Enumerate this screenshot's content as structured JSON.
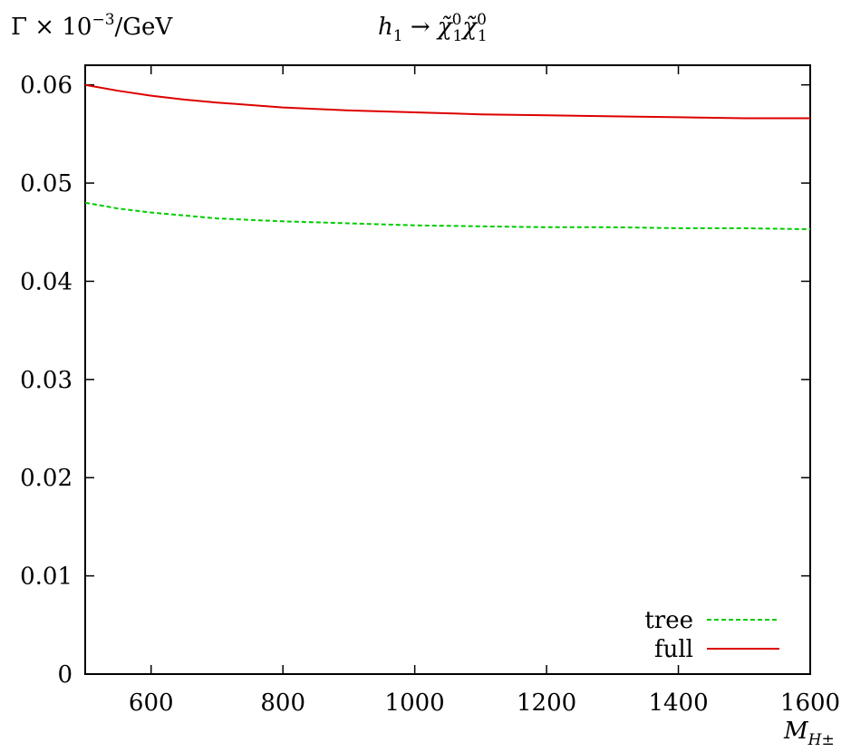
{
  "chart_data": {
    "type": "line",
    "title": "h₁ → χ̃₁⁰χ̃₁⁰",
    "ylabel": "Γ × 10⁻³/GeV",
    "xlabel": "M_{H±}",
    "xlim": [
      500,
      1600
    ],
    "ylim": [
      0,
      0.062
    ],
    "xticks": [
      600,
      800,
      1000,
      1200,
      1400,
      1600
    ],
    "xtick_labels": [
      "600",
      "800",
      "1000",
      "1200",
      "1400",
      "1600"
    ],
    "yticks": [
      0,
      0.01,
      0.02,
      0.03,
      0.04,
      0.05,
      0.06
    ],
    "ytick_labels": [
      "0",
      "0.01",
      "0.02",
      "0.03",
      "0.04",
      "0.05",
      "0.06"
    ],
    "grid": false,
    "legend_position": "bottom-right",
    "series": [
      {
        "name": "tree",
        "color": "#00cc00",
        "dash": "dashed",
        "x": [
          500,
          550,
          600,
          650,
          700,
          800,
          900,
          1000,
          1100,
          1200,
          1300,
          1400,
          1500,
          1600
        ],
        "y": [
          0.048,
          0.0474,
          0.047,
          0.0467,
          0.0464,
          0.0461,
          0.0459,
          0.0457,
          0.0456,
          0.0455,
          0.0455,
          0.0454,
          0.0454,
          0.0453
        ]
      },
      {
        "name": "full",
        "color": "#dd0000",
        "dash": "solid",
        "x": [
          500,
          550,
          600,
          650,
          700,
          800,
          900,
          1000,
          1100,
          1200,
          1300,
          1400,
          1500,
          1600
        ],
        "y": [
          0.06,
          0.0594,
          0.0589,
          0.0585,
          0.0582,
          0.0577,
          0.0574,
          0.0572,
          0.057,
          0.0569,
          0.0568,
          0.0567,
          0.0566,
          0.0566
        ]
      }
    ]
  }
}
